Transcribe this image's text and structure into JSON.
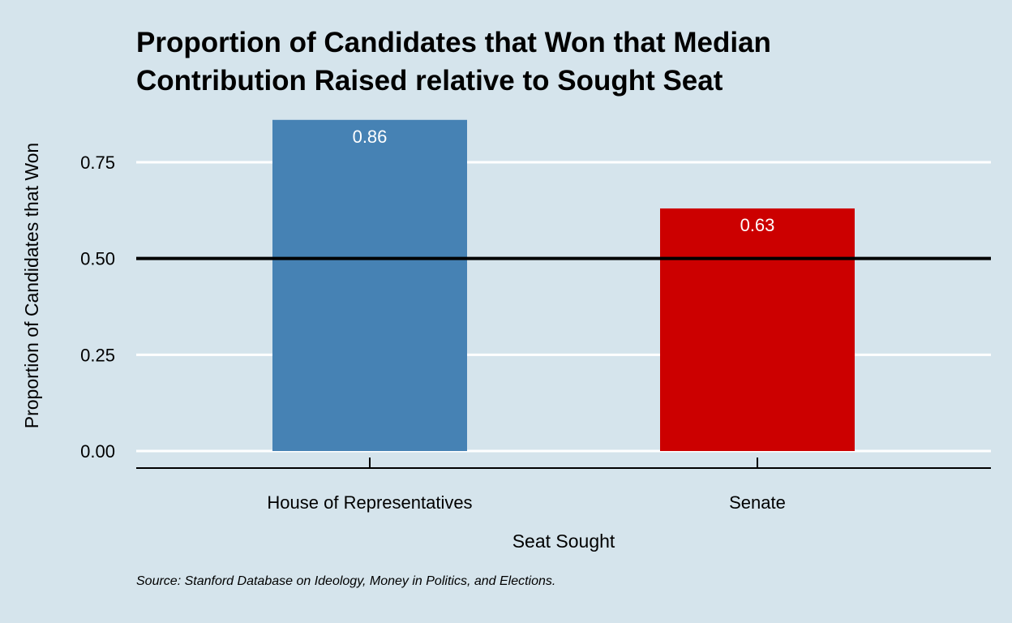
{
  "chart_data": {
    "type": "bar",
    "title_lines": [
      "Proportion of Candidates that Won that Median",
      "Contribution Raised relative to Sought Seat"
    ],
    "xlabel": "Seat Sought",
    "ylabel": "Proportion of Candidates that Won",
    "categories": [
      "House of Representatives",
      "Senate"
    ],
    "values": [
      0.86,
      0.63
    ],
    "value_labels": [
      "0.86",
      "0.63"
    ],
    "bar_colors": [
      "#4682b4",
      "#cc0000"
    ],
    "ylim": [
      0,
      0.86
    ],
    "y_ticks": [
      0.0,
      0.25,
      0.5,
      0.75
    ],
    "y_tick_labels": [
      "0.00",
      "0.25",
      "0.50",
      "0.75"
    ],
    "reference_line": 0.5,
    "grid": "horizontal",
    "legend": "none",
    "caption": "Source: Stanford Database on Ideology, Money in Politics, and Elections."
  },
  "colors": {
    "background": "#d5e4ec",
    "gridline": "#ffffff",
    "reference_line": "#000000"
  }
}
